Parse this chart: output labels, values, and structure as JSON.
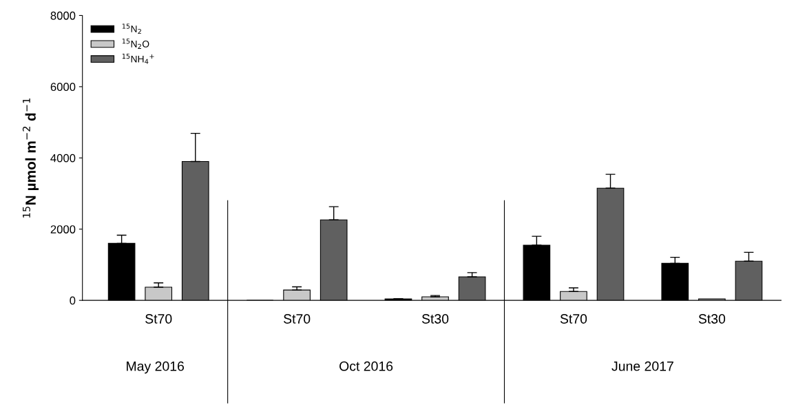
{
  "chart_data": {
    "type": "bar",
    "ylabel": "$^{15}$N µmol m$^{−2}$ d$^{−1}$",
    "categories": [
      "St70",
      "St70",
      "St30",
      "St70",
      "St30"
    ],
    "series": [
      {
        "name": "$^{15}$N$_{2}$",
        "color": "#000000",
        "values": [
          1600,
          0,
          40,
          1550,
          1040
        ],
        "errors": [
          230,
          null,
          10,
          250,
          170
        ]
      },
      {
        "name": "$^{15}$N$_{2}$O",
        "color": "#c8c8c8",
        "values": [
          370,
          290,
          100,
          250,
          40
        ],
        "errors": [
          120,
          90,
          35,
          100,
          null
        ]
      },
      {
        "name": "$^{15}$NH$_{4}$$^{+}$",
        "color": "#606060",
        "values": [
          3900,
          2260,
          660,
          3150,
          1100
        ],
        "errors": [
          790,
          370,
          120,
          390,
          250
        ]
      }
    ],
    "ylim": [
      0,
      8000
    ],
    "yticks": [
      0,
      2000,
      4000,
      6000,
      8000
    ],
    "annotations": [
      "May 2016",
      "Oct 2016",
      "June 2017"
    ],
    "legend": "top left",
    "grid": false
  }
}
